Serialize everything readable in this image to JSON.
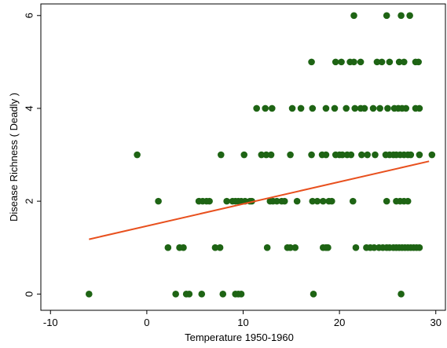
{
  "chart_data": {
    "type": "scatter",
    "title": "",
    "xlabel": "Temperature 1950-1960",
    "ylabel": "Disease Richness ( Deadly )",
    "xlim": [
      -11,
      31
    ],
    "ylim": [
      -0.35,
      6.25
    ],
    "xticks": [
      -10,
      0,
      10,
      20,
      30
    ],
    "yticks": [
      0,
      2,
      4,
      6
    ],
    "xtick_labels": [
      "-10",
      "0",
      "10",
      "20",
      "30"
    ],
    "ytick_labels": [
      "0",
      "2",
      "4",
      "6"
    ],
    "grid": false,
    "legend": "none",
    "colors": {
      "points": "#1e6414",
      "fit_line": "#e8501e",
      "axes": "#000000"
    },
    "series": [
      {
        "kind": "points",
        "points": [
          [
            -6,
            0
          ],
          [
            3,
            0
          ],
          [
            4.1,
            0
          ],
          [
            4.4,
            0
          ],
          [
            5.7,
            0
          ],
          [
            7.9,
            0
          ],
          [
            9.2,
            0
          ],
          [
            9.5,
            0
          ],
          [
            9.8,
            0
          ],
          [
            17.3,
            0
          ],
          [
            26.4,
            0
          ],
          [
            2.2,
            1
          ],
          [
            3.4,
            1
          ],
          [
            3.8,
            1
          ],
          [
            7.1,
            1
          ],
          [
            7.6,
            1
          ],
          [
            12.5,
            1
          ],
          [
            14.6,
            1
          ],
          [
            14.9,
            1
          ],
          [
            15.4,
            1
          ],
          [
            18.3,
            1
          ],
          [
            18.6,
            1
          ],
          [
            18.8,
            1
          ],
          [
            21.7,
            1
          ],
          [
            22.8,
            1
          ],
          [
            23.2,
            1
          ],
          [
            23.6,
            1
          ],
          [
            24.1,
            1
          ],
          [
            24.5,
            1
          ],
          [
            24.9,
            1
          ],
          [
            25.2,
            1
          ],
          [
            25.6,
            1
          ],
          [
            25.9,
            1
          ],
          [
            26.2,
            1
          ],
          [
            26.5,
            1
          ],
          [
            26.8,
            1
          ],
          [
            27.1,
            1
          ],
          [
            27.4,
            1
          ],
          [
            27.7,
            1
          ],
          [
            28,
            1
          ],
          [
            28.3,
            1
          ],
          [
            1.2,
            2
          ],
          [
            5.4,
            2
          ],
          [
            5.8,
            2
          ],
          [
            6.2,
            2
          ],
          [
            6.5,
            2
          ],
          [
            8.3,
            2
          ],
          [
            8.9,
            2
          ],
          [
            9.2,
            2
          ],
          [
            9.5,
            2
          ],
          [
            9.8,
            2
          ],
          [
            10.2,
            2
          ],
          [
            10.7,
            2
          ],
          [
            10.9,
            2
          ],
          [
            12.8,
            2
          ],
          [
            13.1,
            2
          ],
          [
            13.5,
            2
          ],
          [
            14,
            2
          ],
          [
            14.3,
            2
          ],
          [
            15.6,
            2
          ],
          [
            17.2,
            2
          ],
          [
            17.7,
            2
          ],
          [
            18.3,
            2
          ],
          [
            18.9,
            2
          ],
          [
            19.2,
            2
          ],
          [
            21.4,
            2
          ],
          [
            24.9,
            2
          ],
          [
            25.9,
            2
          ],
          [
            26.3,
            2
          ],
          [
            26.7,
            2
          ],
          [
            27.1,
            2
          ],
          [
            -1,
            3
          ],
          [
            7.7,
            3
          ],
          [
            10.1,
            3
          ],
          [
            11.9,
            3
          ],
          [
            12.4,
            3
          ],
          [
            12.9,
            3
          ],
          [
            14.9,
            3
          ],
          [
            17.1,
            3
          ],
          [
            18.2,
            3
          ],
          [
            18.6,
            3
          ],
          [
            19.6,
            3
          ],
          [
            20,
            3
          ],
          [
            20.3,
            3
          ],
          [
            20.8,
            3
          ],
          [
            21.2,
            3
          ],
          [
            22.3,
            3
          ],
          [
            22.9,
            3
          ],
          [
            23.7,
            3
          ],
          [
            24.8,
            3
          ],
          [
            25.2,
            3
          ],
          [
            25.6,
            3
          ],
          [
            25.9,
            3
          ],
          [
            26.3,
            3
          ],
          [
            26.7,
            3
          ],
          [
            27.1,
            3
          ],
          [
            27.4,
            3
          ],
          [
            28.3,
            3
          ],
          [
            29.6,
            3
          ],
          [
            11.4,
            4
          ],
          [
            12.3,
            4
          ],
          [
            13,
            4
          ],
          [
            15.1,
            4
          ],
          [
            16,
            4
          ],
          [
            17.2,
            4
          ],
          [
            18.6,
            4
          ],
          [
            19.5,
            4
          ],
          [
            20.7,
            4
          ],
          [
            21.6,
            4
          ],
          [
            22.2,
            4
          ],
          [
            22.6,
            4
          ],
          [
            23.5,
            4
          ],
          [
            24.2,
            4
          ],
          [
            25,
            4
          ],
          [
            25.7,
            4
          ],
          [
            26.1,
            4
          ],
          [
            26.5,
            4
          ],
          [
            26.9,
            4
          ],
          [
            27.9,
            4
          ],
          [
            28.3,
            4
          ],
          [
            17.1,
            5
          ],
          [
            19.6,
            5
          ],
          [
            20.2,
            5
          ],
          [
            21.1,
            5
          ],
          [
            21.5,
            5
          ],
          [
            22.2,
            5
          ],
          [
            23.9,
            5
          ],
          [
            24.4,
            5
          ],
          [
            25.2,
            5
          ],
          [
            26.2,
            5
          ],
          [
            26.7,
            5
          ],
          [
            27.9,
            5
          ],
          [
            28.2,
            5
          ],
          [
            21.5,
            6
          ],
          [
            24.9,
            6
          ],
          [
            26.4,
            6
          ],
          [
            27.3,
            6
          ]
        ]
      },
      {
        "kind": "fit_line",
        "points": [
          [
            -6,
            1.18
          ],
          [
            29.3,
            2.86
          ]
        ]
      }
    ]
  }
}
